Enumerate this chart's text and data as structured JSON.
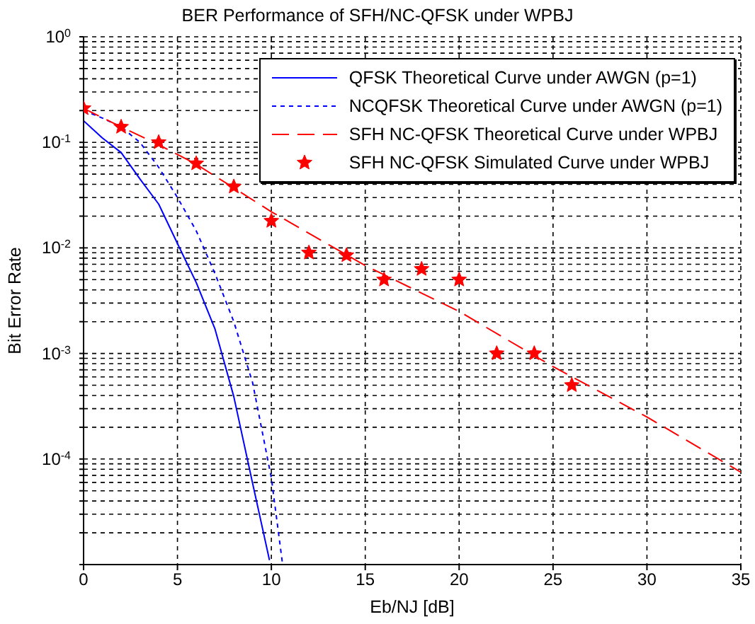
{
  "chart_data": {
    "type": "line",
    "title": "BER Performance of SFH/NC-QFSK under WPBJ",
    "xlabel": "Eb/NJ [dB]",
    "ylabel": "Bit Error Rate",
    "log": "y",
    "grid": true,
    "legend": "top right",
    "xlim": [
      0,
      35
    ],
    "xticks": [
      0,
      5,
      10,
      15,
      20,
      25,
      30,
      35
    ],
    "ylim": [
      1e-05,
      1
    ],
    "yticks": [
      {
        "value": 1e-05,
        "label": null
      },
      {
        "value": 2e-05,
        "label": null
      },
      {
        "value": 3e-05,
        "label": null
      },
      {
        "value": 4e-05,
        "label": null
      },
      {
        "value": 5e-05,
        "label": null
      },
      {
        "value": 6e-05,
        "label": null
      },
      {
        "value": 7e-05,
        "label": null
      },
      {
        "value": 8e-05,
        "label": null
      },
      {
        "value": 9e-05,
        "label": null
      },
      {
        "value": 0.0001,
        "label": "10$^{-4}$"
      },
      {
        "value": 0.0002,
        "label": null
      },
      {
        "value": 0.0003,
        "label": null
      },
      {
        "value": 0.0004,
        "label": null
      },
      {
        "value": 0.0005,
        "label": null
      },
      {
        "value": 0.0006,
        "label": null
      },
      {
        "value": 0.0007,
        "label": null
      },
      {
        "value": 0.0008,
        "label": null
      },
      {
        "value": 0.0009,
        "label": null
      },
      {
        "value": 0.001,
        "label": "10$^{-3}$"
      },
      {
        "value": 0.002,
        "label": null
      },
      {
        "value": 0.003,
        "label": null
      },
      {
        "value": 0.004,
        "label": null
      },
      {
        "value": 0.005,
        "label": null
      },
      {
        "value": 0.006,
        "label": null
      },
      {
        "value": 0.007,
        "label": null
      },
      {
        "value": 0.008,
        "label": null
      },
      {
        "value": 0.009,
        "label": null
      },
      {
        "value": 0.01,
        "label": "10$^{-2}$"
      },
      {
        "value": 0.02,
        "label": null
      },
      {
        "value": 0.03,
        "label": null
      },
      {
        "value": 0.04,
        "label": null
      },
      {
        "value": 0.05,
        "label": null
      },
      {
        "value": 0.06,
        "label": null
      },
      {
        "value": 0.07,
        "label": null
      },
      {
        "value": 0.08,
        "label": null
      },
      {
        "value": 0.09,
        "label": null
      },
      {
        "value": 0.1,
        "label": "10$^{-1}$"
      },
      {
        "value": 0.2,
        "label": null
      },
      {
        "value": 0.3,
        "label": null
      },
      {
        "value": 0.4,
        "label": null
      },
      {
        "value": 0.5,
        "label": null
      },
      {
        "value": 0.6,
        "label": null
      },
      {
        "value": 0.7,
        "label": null
      },
      {
        "value": 0.8,
        "label": null
      },
      {
        "value": 0.9,
        "label": null
      },
      {
        "value": 1,
        "label": "10$^{0}$"
      }
    ],
    "series": [
      {
        "name": "QFSK Theoretical Curve under AWGN (p=1)",
        "type": "line",
        "line_style": "solid",
        "marker": "none",
        "color": "#0000ff",
        "x": [
          0,
          1,
          2,
          3,
          4,
          5,
          6,
          7,
          8,
          9,
          9.9
        ],
        "values": [
          0.16,
          0.11,
          0.08,
          0.045,
          0.026,
          0.011,
          0.0047,
          0.0017,
          0.00039,
          5.9e-05,
          1.1e-05
        ]
      },
      {
        "name": "NCQFSK Theoretical Curve under AWGN (p=1)",
        "type": "line",
        "line_style": "dotted",
        "marker": "none",
        "color": "#0000ff",
        "x": [
          0,
          1,
          2,
          3,
          4,
          5,
          6,
          7,
          8,
          9,
          10,
          10.6
        ],
        "values": [
          0.2,
          0.17,
          0.14,
          0.1,
          0.058,
          0.03,
          0.0145,
          0.0057,
          0.002,
          0.00053,
          6.6e-05,
          1e-05
        ]
      },
      {
        "name": "SFH NC-QFSK Theoretical Curve under WPBJ",
        "type": "line",
        "line_style": "dashed",
        "marker": "none",
        "color": "#ff0000",
        "x": [
          0,
          2,
          4,
          6,
          8,
          10,
          15,
          20,
          25,
          30,
          35
        ],
        "values": [
          0.21,
          0.14,
          0.095,
          0.062,
          0.037,
          0.022,
          0.0068,
          0.0025,
          0.00075,
          0.00025,
          7.5e-05
        ]
      },
      {
        "name": "SFH NC-QFSK Simulated Curve under WPBJ",
        "type": "scatter",
        "marker": "star",
        "color": "#ff0000",
        "x": [
          0,
          2,
          4,
          6,
          8,
          10,
          12,
          14,
          16,
          18,
          20,
          22,
          24,
          26
        ],
        "values": [
          0.21,
          0.14,
          0.1,
          0.063,
          0.038,
          0.018,
          0.009,
          0.0085,
          0.005,
          0.0063,
          0.005,
          0.001,
          0.001,
          0.0005
        ]
      }
    ]
  }
}
